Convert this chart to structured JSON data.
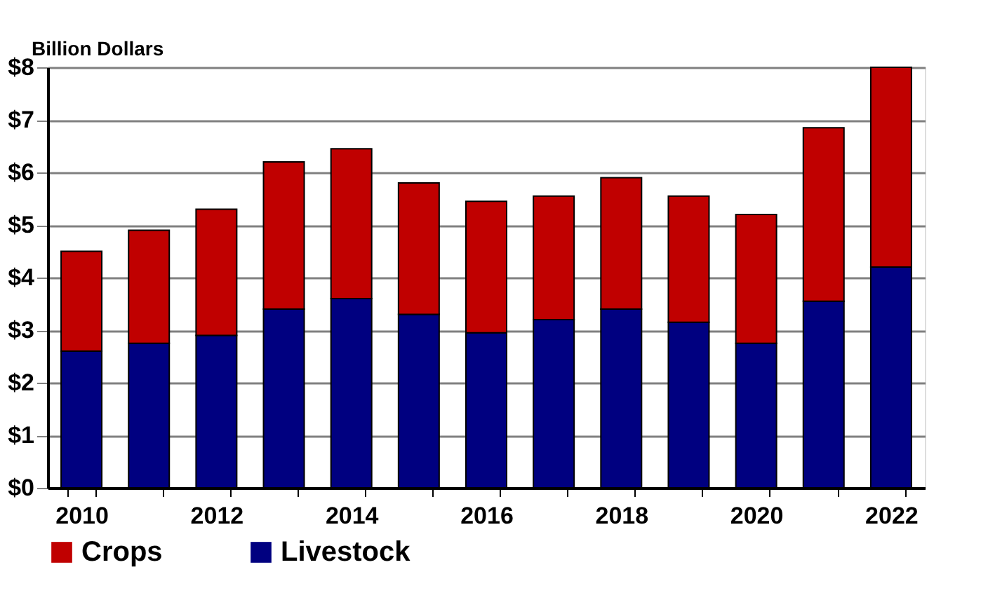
{
  "chart_data": {
    "type": "bar",
    "stacked": true,
    "ylabel": "Billion Dollars",
    "categories": [
      "2010",
      null,
      "2012",
      null,
      "2014",
      null,
      "2016",
      null,
      "2018",
      null,
      "2020",
      null,
      "2022"
    ],
    "series": [
      {
        "name": "Livestock",
        "color": "#000080",
        "values": [
          2.6,
          2.75,
          2.9,
          3.4,
          3.6,
          3.3,
          2.95,
          3.2,
          3.4,
          3.15,
          2.75,
          3.55,
          4.2
        ]
      },
      {
        "name": "Crops",
        "color": "#c00000",
        "values": [
          1.9,
          2.15,
          2.4,
          2.8,
          2.85,
          2.5,
          2.5,
          2.35,
          2.5,
          2.4,
          2.45,
          3.3,
          3.8
        ]
      }
    ],
    "ylim": [
      0,
      8
    ],
    "yticks": [
      {
        "value": 0,
        "label": "$0"
      },
      {
        "value": 1,
        "label": "$1"
      },
      {
        "value": 2,
        "label": "$2"
      },
      {
        "value": 3,
        "label": "$3"
      },
      {
        "value": 4,
        "label": "$4"
      },
      {
        "value": 5,
        "label": "$5"
      },
      {
        "value": 6,
        "label": "$6"
      },
      {
        "value": 7,
        "label": "$7"
      },
      {
        "value": 8,
        "label": "$8"
      }
    ],
    "grid": "y",
    "legend": "bottom"
  }
}
